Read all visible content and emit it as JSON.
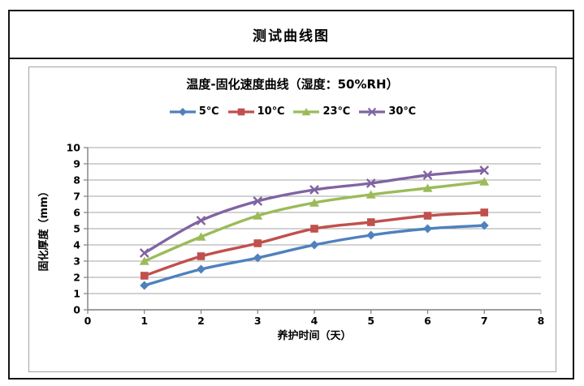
{
  "header": {
    "title": "测试曲线图"
  },
  "chart_data": {
    "type": "line",
    "title": "温度-固化速度曲线（湿度：50%RH）",
    "xlabel": "养护时间（天）",
    "ylabel": "固化厚度（mm）",
    "x": [
      1,
      2,
      3,
      4,
      5,
      6,
      7
    ],
    "xlim": [
      0,
      8
    ],
    "ylim": [
      0,
      10
    ],
    "xticks": [
      0,
      1,
      2,
      3,
      4,
      5,
      6,
      7,
      8
    ],
    "yticks": [
      0,
      1,
      2,
      3,
      4,
      5,
      6,
      7,
      8,
      9,
      10
    ],
    "grid": true,
    "smooth_lines": true,
    "legend_position": "top",
    "series": [
      {
        "name": "5℃",
        "marker": "diamond",
        "color": "#4F81BD",
        "values": [
          1.5,
          2.5,
          3.2,
          4.0,
          4.6,
          5.0,
          5.2
        ]
      },
      {
        "name": "10℃",
        "marker": "square",
        "color": "#C0504D",
        "values": [
          2.1,
          3.3,
          4.1,
          5.0,
          5.4,
          5.8,
          6.0
        ]
      },
      {
        "name": "23℃",
        "marker": "triangle",
        "color": "#9BBB59",
        "values": [
          3.0,
          4.5,
          5.8,
          6.6,
          7.1,
          7.5,
          7.9
        ]
      },
      {
        "name": "30℃",
        "marker": "x",
        "color": "#8064A2",
        "values": [
          3.5,
          5.5,
          6.7,
          7.4,
          7.8,
          8.3,
          8.6
        ]
      }
    ]
  },
  "colors": {
    "outer_border": "#141414",
    "inner_border": "#a3a3a3",
    "gridline": "#a6a6a6",
    "axis": "#7f7f7f",
    "text": "#000000",
    "background": "#ffffff"
  }
}
